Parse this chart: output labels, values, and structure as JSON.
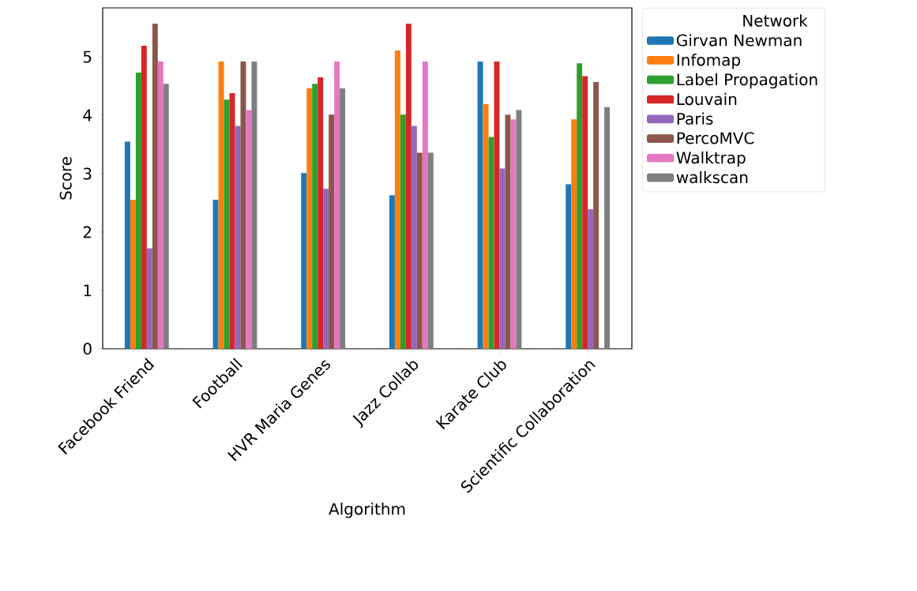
{
  "chart_data": {
    "type": "bar",
    "xlabel": "Algorithm",
    "ylabel": "Score",
    "legend_title": "Network",
    "categories": [
      "Facebook Friend",
      "Football",
      "HVR Maria Genes",
      "Jazz Collab",
      "Karate Club",
      "Scientific Collaboration"
    ],
    "ylim": [
      0,
      5.84
    ],
    "yticks": [
      0,
      1,
      2,
      3,
      4,
      5
    ],
    "legend": "right",
    "grid": false,
    "series": [
      {
        "name": "Girvan Newman",
        "color": "#1f77b4",
        "values": [
          3.55,
          2.55,
          3.01,
          2.63,
          4.92,
          2.82
        ]
      },
      {
        "name": "Infomap",
        "color": "#ff7f0e",
        "values": [
          2.55,
          4.92,
          4.46,
          5.11,
          4.19,
          3.93
        ]
      },
      {
        "name": "Label Propagation",
        "color": "#2ca02c",
        "values": [
          4.73,
          4.27,
          4.54,
          4.01,
          3.63,
          4.89
        ]
      },
      {
        "name": "Louvain",
        "color": "#d62728",
        "values": [
          5.19,
          4.38,
          4.65,
          5.57,
          4.92,
          4.67
        ]
      },
      {
        "name": "Paris",
        "color": "#9467bd",
        "values": [
          1.72,
          3.82,
          2.74,
          3.82,
          3.09,
          2.39
        ]
      },
      {
        "name": "PercoMVC",
        "color": "#8c564b",
        "values": [
          5.57,
          4.92,
          4.01,
          3.36,
          4.01,
          4.57
        ]
      },
      {
        "name": "Walktrap",
        "color": "#e377c2",
        "values": [
          4.92,
          4.09,
          4.92,
          4.92,
          3.93,
          null
        ]
      },
      {
        "name": "walkscan",
        "color": "#7f7f7f",
        "values": [
          4.54,
          4.92,
          4.46,
          3.36,
          4.09,
          4.14
        ]
      }
    ]
  }
}
